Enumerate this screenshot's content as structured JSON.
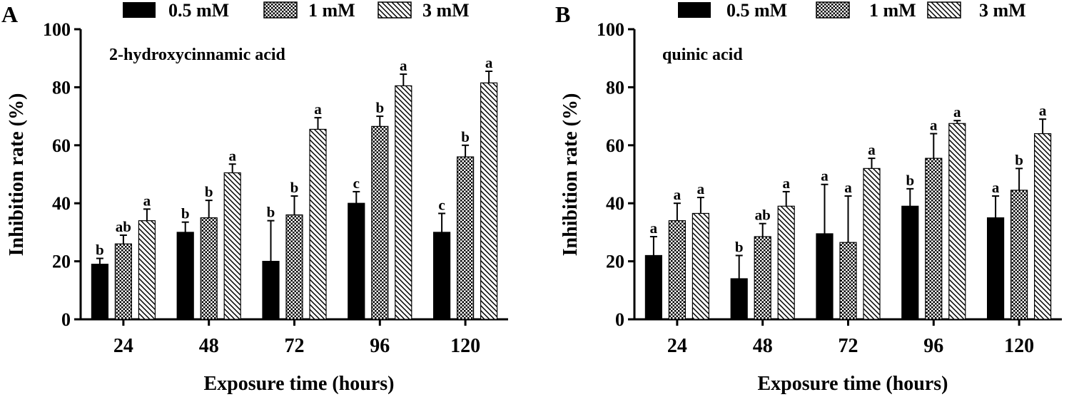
{
  "legend": {
    "series": [
      {
        "name": "0.5 mM",
        "pattern": "solid"
      },
      {
        "name": "1 mM",
        "pattern": "checker"
      },
      {
        "name": "3 mM",
        "pattern": "hatch"
      }
    ]
  },
  "colors": {
    "bar_fill": "#000000",
    "axis": "#000000",
    "hatch_stroke": "#000000",
    "background": "#ffffff"
  },
  "chart_data": [
    {
      "panel_label": "A",
      "type": "bar",
      "title": "2-hydroxycinnamic acid",
      "xlabel": "Exposure time (hours)",
      "ylabel": "Inhibition rate (%)",
      "categories": [
        "24",
        "48",
        "72",
        "96",
        "120"
      ],
      "ylim": [
        0,
        100
      ],
      "yticks": [
        "0",
        "20",
        "40",
        "60",
        "80",
        "100"
      ],
      "series": [
        {
          "name": "0.5 mM",
          "values": [
            19,
            30,
            20,
            40,
            30
          ],
          "errors": [
            2,
            3.5,
            14,
            4,
            6.5
          ],
          "letters": [
            "b",
            "b",
            "b",
            "c",
            "c"
          ]
        },
        {
          "name": "1 mM",
          "values": [
            26,
            35,
            36,
            66.5,
            56
          ],
          "errors": [
            3,
            6,
            6.5,
            3.5,
            4
          ],
          "letters": [
            "ab",
            "b",
            "b",
            "b",
            "b"
          ]
        },
        {
          "name": "3 mM",
          "values": [
            34,
            50.5,
            65.5,
            80.5,
            81.5
          ],
          "errors": [
            4,
            3,
            4,
            4,
            4
          ],
          "letters": [
            "a",
            "a",
            "a",
            "a",
            "a"
          ]
        }
      ]
    },
    {
      "panel_label": "B",
      "type": "bar",
      "title": "quinic acid",
      "xlabel": "Exposure time (hours)",
      "ylabel": "Inhibition rate (%)",
      "categories": [
        "24",
        "48",
        "72",
        "96",
        "120"
      ],
      "ylim": [
        0,
        100
      ],
      "yticks": [
        "0",
        "20",
        "40",
        "60",
        "80",
        "100"
      ],
      "series": [
        {
          "name": "0.5 mM",
          "values": [
            22,
            14,
            29.5,
            39,
            35
          ],
          "errors": [
            6.5,
            8,
            17,
            6,
            7.5
          ],
          "letters": [
            "a",
            "b",
            "a",
            "b",
            "a"
          ]
        },
        {
          "name": "1 mM",
          "values": [
            34,
            28.5,
            26.5,
            55.5,
            44.5
          ],
          "errors": [
            6,
            4.5,
            16,
            8.5,
            7.5
          ],
          "letters": [
            "a",
            "ab",
            "a",
            "a",
            "b"
          ]
        },
        {
          "name": "3 mM",
          "values": [
            36.5,
            39,
            52,
            67.5,
            64
          ],
          "errors": [
            5.5,
            5,
            3.5,
            1,
            5
          ],
          "letters": [
            "a",
            "a",
            "a",
            "a",
            "a"
          ]
        }
      ]
    }
  ]
}
